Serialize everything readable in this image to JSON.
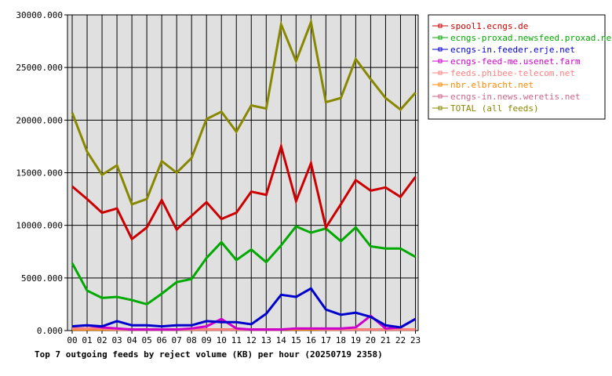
{
  "chart_data": {
    "type": "line",
    "title": "Top 7 outgoing feeds by reject volume (KB) per hour (20250719 2358)",
    "xlabel": "",
    "ylabel": "",
    "ylim": [
      0,
      30000
    ],
    "yticks": [
      0,
      5000,
      10000,
      15000,
      20000,
      25000,
      30000
    ],
    "ytick_labels": [
      "0.000",
      "5000.000",
      "10000.000",
      "15000.000",
      "20000.000",
      "25000.000",
      "30000.000"
    ],
    "categories": [
      "00",
      "01",
      "02",
      "03",
      "04",
      "05",
      "06",
      "07",
      "08",
      "09",
      "10",
      "11",
      "12",
      "13",
      "14",
      "15",
      "16",
      "17",
      "18",
      "19",
      "20",
      "21",
      "22",
      "23"
    ],
    "grid": true,
    "legend_position": "right",
    "series": [
      {
        "name": "spool1.ecngs.de",
        "color": "#cc0000",
        "values": [
          13700,
          12500,
          11200,
          11600,
          8700,
          9800,
          12400,
          9600,
          10900,
          12200,
          10600,
          11200,
          13200,
          12900,
          17500,
          12300,
          15900,
          9800,
          12000,
          14300,
          13300,
          13600,
          12700,
          14600
        ]
      },
      {
        "name": "ecngs-proxad.newsfeed.proxad.net",
        "color": "#00aa00",
        "values": [
          6400,
          3800,
          3100,
          3200,
          2900,
          2500,
          3500,
          4600,
          4900,
          6900,
          8400,
          6700,
          7700,
          6500,
          8100,
          9900,
          9300,
          9700,
          8500,
          9800,
          8000,
          7800,
          7800,
          7000
        ]
      },
      {
        "name": "ecngs-in.feeder.erje.net",
        "color": "#0000cc",
        "values": [
          400,
          500,
          400,
          900,
          500,
          500,
          400,
          500,
          500,
          900,
          800,
          800,
          600,
          1600,
          3400,
          3200,
          4000,
          2000,
          1500,
          1700,
          1300,
          500,
          300,
          1100
        ]
      },
      {
        "name": "ecngs-feed-me.usenet.farm",
        "color": "#cc00cc",
        "values": [
          400,
          500,
          300,
          200,
          100,
          100,
          100,
          100,
          200,
          400,
          1100,
          200,
          100,
          100,
          100,
          200,
          200,
          200,
          200,
          300,
          1400,
          200,
          300,
          1100
        ]
      },
      {
        "name": "feeds.phibee-telecom.net",
        "color": "#ff8080",
        "values": [
          200,
          200,
          200,
          100,
          100,
          100,
          100,
          100,
          100,
          100,
          100,
          100,
          100,
          100,
          100,
          200,
          200,
          100,
          100,
          100,
          100,
          100,
          100,
          100
        ]
      },
      {
        "name": "nbr.elbracht.net",
        "color": "#ff8800",
        "values": [
          100,
          100,
          100,
          100,
          100,
          100,
          100,
          100,
          100,
          100,
          100,
          100,
          100,
          100,
          100,
          100,
          100,
          100,
          100,
          100,
          100,
          100,
          100,
          100
        ]
      },
      {
        "name": "ecngs-in.news.weretis.net",
        "color": "#cc6688",
        "values": [
          100,
          100,
          100,
          100,
          100,
          100,
          100,
          100,
          100,
          100,
          100,
          100,
          100,
          100,
          100,
          100,
          100,
          100,
          100,
          100,
          100,
          100,
          100,
          100
        ]
      },
      {
        "name": "TOTAL (all feeds)",
        "color": "#888800",
        "values": [
          20700,
          17000,
          14800,
          15700,
          12000,
          12500,
          16100,
          15000,
          16400,
          20100,
          20800,
          18900,
          21400,
          21100,
          29100,
          25600,
          29300,
          21700,
          22100,
          25800,
          23900,
          22100,
          21000,
          22600
        ]
      }
    ]
  }
}
